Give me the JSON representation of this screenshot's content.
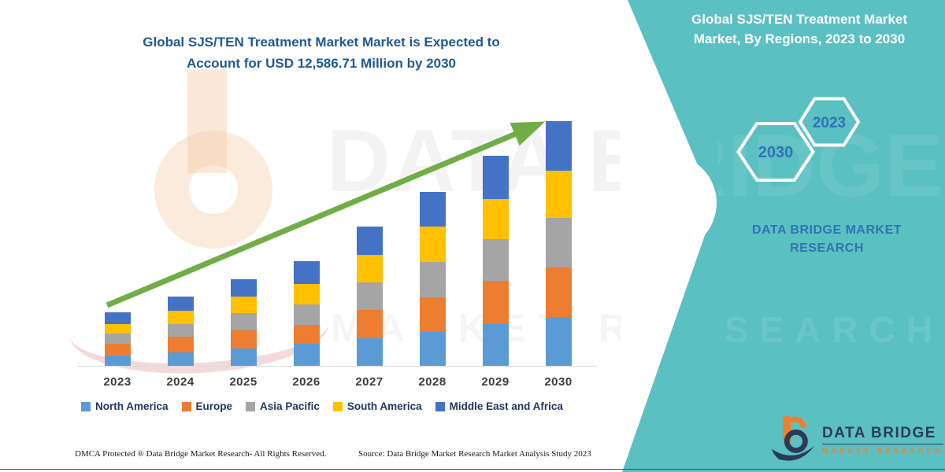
{
  "header": {
    "title_line1": "Global SJS/TEN Treatment Market Market is Expected to",
    "title_line2": "Account for USD 12,586.71 Million by 2030",
    "title_color": "#1E5A96"
  },
  "side_panel": {
    "background_color": "#5BC0C2",
    "title_line1": "Global SJS/TEN Treatment Market",
    "title_line2": "Market, By Regions, 2023 to 2030",
    "hexagon_labels": [
      "2030",
      "2023"
    ],
    "hexagon_text_color": "#2E74B5",
    "brand_line1": "DATA BRIDGE MARKET",
    "brand_line2": "RESEARCH",
    "brand_text_color": "#2E74B5"
  },
  "chart_data": {
    "type": "bar",
    "stacked": true,
    "title": "Global SJS/TEN Treatment Market, By Regions, 2023 to 2030",
    "unit": "USD Million",
    "categories": [
      "2023",
      "2024",
      "2025",
      "2026",
      "2027",
      "2028",
      "2029",
      "2030"
    ],
    "series": [
      {
        "name": "North America",
        "color": "#5B9BD5",
        "values": [
          525,
          690,
          890,
          1135,
          1415,
          1740,
          2145,
          2510
        ]
      },
      {
        "name": "Europe",
        "color": "#ED7D31",
        "values": [
          605,
          810,
          930,
          970,
          1455,
          1780,
          2225,
          2550
        ]
      },
      {
        "name": "Asia Pacific",
        "color": "#A5A5A5",
        "values": [
          525,
          645,
          890,
          1050,
          1415,
          1820,
          2145,
          2550
        ]
      },
      {
        "name": "South America",
        "color": "#FFC000",
        "values": [
          485,
          690,
          850,
          1050,
          1415,
          1820,
          2065,
          2430
        ]
      },
      {
        "name": "Middle East and Africa",
        "color": "#4472C4",
        "values": [
          605,
          730,
          890,
          1175,
          1455,
          1780,
          2225,
          2545
        ]
      }
    ],
    "totals_musd_estimated": [
      2745,
      3565,
      4450,
      5380,
      7155,
      8940,
      10805,
      12585
    ],
    "final_year_total_label": "USD 12,586.71 Million by 2030",
    "ylim": [
      0,
      13000
    ],
    "gridlines": false,
    "y_axis_shown": false,
    "legend_position": "bottom",
    "trend_arrow_color": "#70AD47"
  },
  "footer": {
    "dmca_text": "DMCA Protected ® Data Bridge Market Research-  All Rights Reserved.",
    "source_text": "Source: Data Bridge Market Research  Market Analysis Study 2023"
  },
  "logo": {
    "title": "DATA BRIDGE",
    "subtitle": "MARKET RESEARCH",
    "title_color": "#2D3A56",
    "subtitle_color": "#F07E2D"
  },
  "watermarks": {
    "brand_text": "DATA BRIDGE",
    "sub_text": "MARKET RESEARCH"
  }
}
